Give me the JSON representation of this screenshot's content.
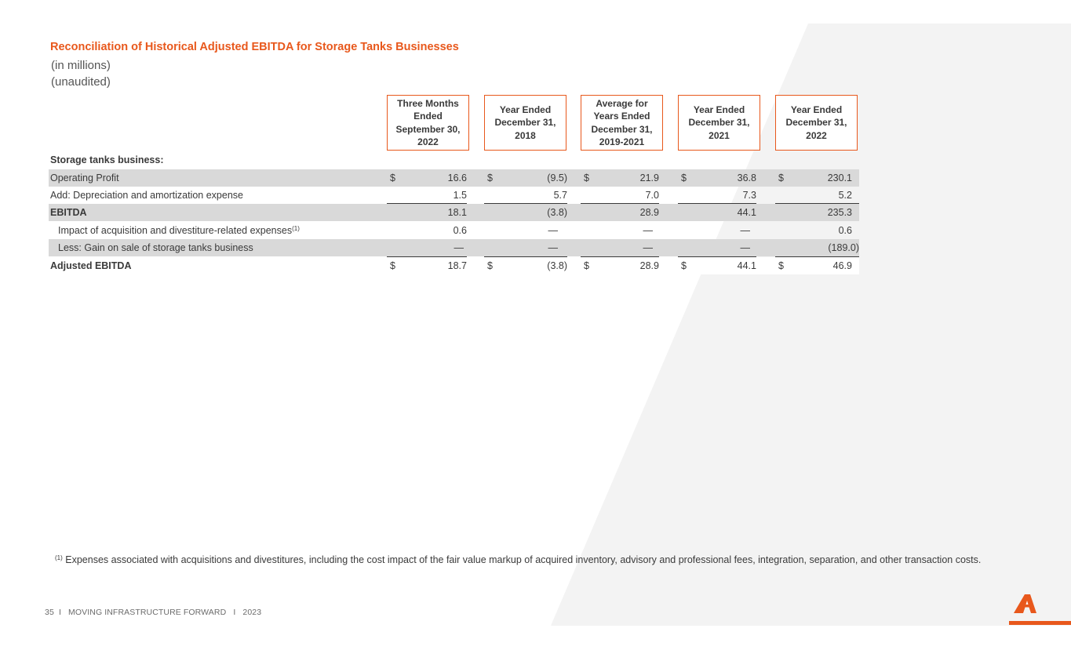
{
  "title": "Reconciliation of Historical Adjusted EBITDA for Storage Tanks Businesses",
  "subtitle_lines": [
    "(in millions)",
    "(unaudited)"
  ],
  "columns": [
    "Three Months Ended September 30, 2022",
    "Year Ended December 31, 2018",
    "Average for Years Ended December 31, 2019-2021",
    "Year Ended December 31, 2021",
    "Year Ended December 31, 2022"
  ],
  "section_label": "Storage tanks business:",
  "currency_symbol": "$",
  "rows": [
    {
      "label": "Operating Profit",
      "values": [
        "16.6",
        "(9.5)",
        "21.9",
        "36.8",
        "230.1"
      ]
    },
    {
      "label": "Add: Depreciation and amortization expense",
      "values": [
        "1.5",
        "5.7",
        "7.0",
        "7.3",
        "5.2"
      ]
    },
    {
      "label": "EBITDA",
      "values": [
        "18.1",
        "(3.8)",
        "28.9",
        "44.1",
        "235.3"
      ]
    },
    {
      "label": "Impact of acquisition and divestiture-related expenses",
      "footnote_ref": "(1)",
      "values": [
        "0.6",
        "—",
        "—",
        "—",
        "0.6"
      ]
    },
    {
      "label": "Less: Gain on sale of storage tanks business",
      "values": [
        "—",
        "—",
        "—",
        "—",
        "(189.0)"
      ]
    },
    {
      "label": "Adjusted EBITDA",
      "values": [
        "18.7",
        "(3.8)",
        "28.9",
        "44.1",
        "46.9"
      ]
    }
  ],
  "footnote": {
    "marker": "(1)",
    "text": "Expenses associated with acquisitions and divestitures, including the cost impact of the fair value markup of acquired inventory, advisory and professional fees, integration, separation, and other transaction costs."
  },
  "footer": {
    "page_number": "35",
    "separator": "I",
    "tagline": "MOVING INFRASTRUCTURE FORWARD",
    "year": "2023"
  },
  "colors": {
    "accent": "#e8581c",
    "row_shade": "#d9d9d9",
    "background_shape": "#f3f3f3",
    "text": "#3a3a3a"
  },
  "icons": {
    "logo": "arcosa-a-logo-icon"
  }
}
